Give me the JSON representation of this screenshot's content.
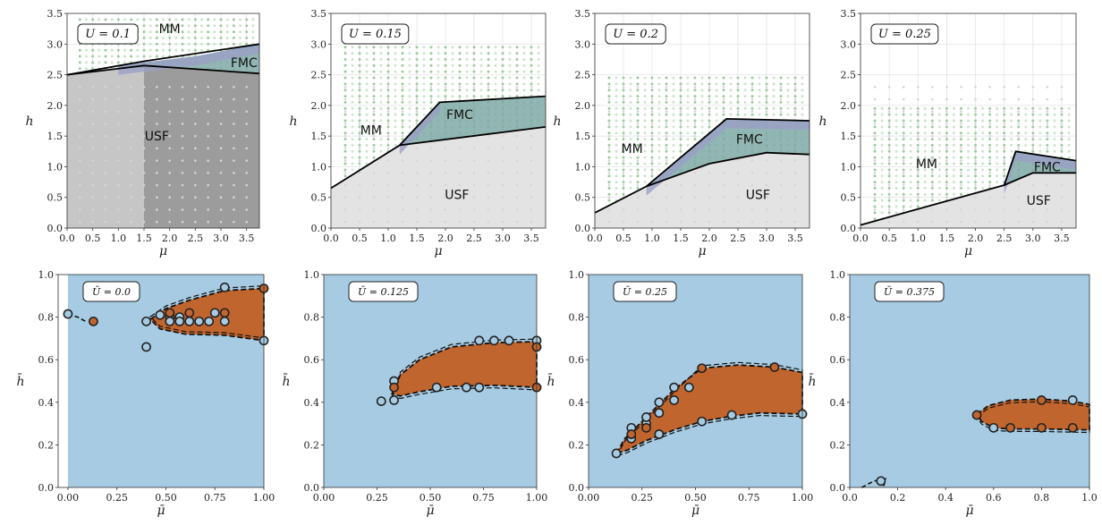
{
  "chart_data": [
    {
      "type": "area",
      "panel": "top",
      "annotation": "U = 0.1",
      "xlabel": "μ",
      "ylabel": "h",
      "xlim": [
        0,
        3.75
      ],
      "ylim": [
        0,
        3.5
      ],
      "xticks": [
        "0.0",
        "0.5",
        "1.0",
        "1.5",
        "2.0",
        "2.5",
        "3.0",
        "3.5"
      ],
      "yticks": [
        "0.0",
        "0.5",
        "1.0",
        "1.5",
        "2.0",
        "2.5",
        "3.0",
        "3.5"
      ],
      "grid": true,
      "region_labels": [
        {
          "text": "MM",
          "x": 2.0,
          "y": 3.25
        },
        {
          "text": "FMC",
          "x": 3.45,
          "y": 2.7
        },
        {
          "text": "USF",
          "x": 1.75,
          "y": 1.5
        }
      ],
      "boundaries": [
        [
          [
            0,
            2.5
          ],
          [
            1.5,
            2.72
          ],
          [
            3.75,
            3.0
          ]
        ],
        [
          [
            0,
            2.5
          ],
          [
            1.5,
            2.65
          ],
          [
            3.75,
            2.52
          ]
        ]
      ],
      "fill_top": [
        [
          0,
          2.5
        ],
        [
          1.5,
          2.65
        ],
        [
          3.75,
          2.52
        ]
      ],
      "fmc_region": [
        [
          1.0,
          2.65
        ],
        [
          2.5,
          2.8
        ],
        [
          3.75,
          3.0
        ],
        [
          3.75,
          2.52
        ],
        [
          2.5,
          2.6
        ],
        [
          1.0,
          2.62
        ]
      ],
      "dots_ymin": 2.5
    },
    {
      "type": "area",
      "panel": "top",
      "annotation": "U = 0.15",
      "xlabel": "μ",
      "ylabel": "h",
      "xlim": [
        0,
        3.75
      ],
      "ylim": [
        0,
        3.5
      ],
      "xticks": [
        "0.0",
        "0.5",
        "1.0",
        "1.5",
        "2.0",
        "2.5",
        "3.0",
        "3.5"
      ],
      "yticks": [
        "0.0",
        "0.5",
        "1.0",
        "1.5",
        "2.0",
        "2.5",
        "3.0",
        "3.5"
      ],
      "grid": true,
      "region_labels": [
        {
          "text": "MM",
          "x": 0.7,
          "y": 1.6
        },
        {
          "text": "FMC",
          "x": 2.25,
          "y": 1.85
        },
        {
          "text": "USF",
          "x": 2.2,
          "y": 0.55
        }
      ],
      "boundaries": [
        [
          [
            0,
            0.65
          ],
          [
            1.2,
            1.35
          ],
          [
            1.9,
            2.05
          ],
          [
            3.75,
            2.15
          ]
        ],
        [
          [
            1.2,
            1.35
          ],
          [
            3.75,
            1.65
          ]
        ]
      ],
      "fill_top": [
        [
          0,
          0.65
        ],
        [
          1.2,
          1.35
        ],
        [
          3.75,
          1.65
        ]
      ],
      "fmc_region": [
        [
          1.2,
          1.35
        ],
        [
          1.9,
          2.05
        ],
        [
          3.75,
          2.15
        ],
        [
          3.75,
          1.65
        ]
      ],
      "dots_ymin": 0.65,
      "dots_ymax": 3.0
    },
    {
      "type": "area",
      "panel": "top",
      "annotation": "U = 0.2",
      "xlabel": "μ",
      "ylabel": "h",
      "xlim": [
        0,
        3.75
      ],
      "ylim": [
        0,
        3.5
      ],
      "xticks": [
        "0.0",
        "0.5",
        "1.0",
        "1.5",
        "2.0",
        "2.5",
        "3.0",
        "3.5"
      ],
      "yticks": [
        "0.0",
        "0.5",
        "1.0",
        "1.5",
        "2.0",
        "2.5",
        "3.0",
        "3.5"
      ],
      "grid": true,
      "region_labels": [
        {
          "text": "MM",
          "x": 0.65,
          "y": 1.3
        },
        {
          "text": "FMC",
          "x": 2.7,
          "y": 1.45
        },
        {
          "text": "USF",
          "x": 2.85,
          "y": 0.55
        }
      ],
      "boundaries": [
        [
          [
            0,
            0.25
          ],
          [
            0.9,
            0.68
          ],
          [
            2.3,
            1.78
          ],
          [
            3.75,
            1.75
          ]
        ],
        [
          [
            0.9,
            0.68
          ],
          [
            2.0,
            1.05
          ],
          [
            3.0,
            1.23
          ],
          [
            3.75,
            1.2
          ]
        ]
      ],
      "fill_top": [
        [
          0,
          0.25
        ],
        [
          0.9,
          0.68
        ],
        [
          2.0,
          1.05
        ],
        [
          3.0,
          1.23
        ],
        [
          3.75,
          1.2
        ]
      ],
      "fmc_region": [
        [
          0.9,
          0.68
        ],
        [
          2.3,
          1.78
        ],
        [
          3.75,
          1.75
        ],
        [
          3.75,
          1.2
        ],
        [
          3.0,
          1.23
        ],
        [
          2.0,
          1.05
        ]
      ],
      "dots_ymin": 0.25,
      "dots_ymax": 2.5
    },
    {
      "type": "area",
      "panel": "top",
      "annotation": "U = 0.25",
      "xlabel": "μ",
      "ylabel": "h",
      "xlim": [
        0,
        3.75
      ],
      "ylim": [
        0,
        3.5
      ],
      "xticks": [
        "0.0",
        "0.5",
        "1.0",
        "1.5",
        "2.0",
        "2.5",
        "3.0",
        "3.5"
      ],
      "yticks": [
        "0.0",
        "0.5",
        "1.0",
        "1.5",
        "2.0",
        "2.5",
        "3.0",
        "3.5"
      ],
      "grid": true,
      "region_labels": [
        {
          "text": "MM",
          "x": 1.15,
          "y": 1.05
        },
        {
          "text": "FMC",
          "x": 3.25,
          "y": 1.0
        },
        {
          "text": "USF",
          "x": 3.1,
          "y": 0.45
        }
      ],
      "boundaries": [
        [
          [
            0,
            0.05
          ],
          [
            2.5,
            0.7
          ],
          [
            2.7,
            1.25
          ],
          [
            3.75,
            1.1
          ]
        ],
        [
          [
            2.5,
            0.7
          ],
          [
            3.0,
            0.9
          ],
          [
            3.75,
            0.9
          ]
        ]
      ],
      "fill_top": [
        [
          0,
          0.05
        ],
        [
          2.5,
          0.7
        ],
        [
          3.0,
          0.9
        ],
        [
          3.75,
          0.9
        ]
      ],
      "fmc_region": [
        [
          2.5,
          0.7
        ],
        [
          2.7,
          1.25
        ],
        [
          3.75,
          1.1
        ],
        [
          3.75,
          0.9
        ],
        [
          3.0,
          0.9
        ]
      ],
      "dots_ymin": 0.05,
      "dots_ymax": 2.0
    },
    {
      "type": "area",
      "panel": "bottom",
      "annotation": "Ū = 0.0",
      "xlabel": "μ̄",
      "ylabel": "h̄",
      "xlim": [
        -0.05,
        1.0
      ],
      "ylim": [
        0,
        1.0
      ],
      "xticks": [
        "0.00",
        "0.25",
        "0.50",
        "0.75",
        "1.00"
      ],
      "xtick_values": [
        0,
        0.25,
        0.5,
        0.75,
        1.0
      ],
      "yticks": [
        "0.0",
        "0.2",
        "0.4",
        "0.6",
        "0.8",
        "1.0"
      ],
      "grid": false,
      "region": [
        [
          0.42,
          0.79
        ],
        [
          0.5,
          0.84
        ],
        [
          0.62,
          0.88
        ],
        [
          0.8,
          0.925
        ],
        [
          1.0,
          0.935
        ],
        [
          1.0,
          0.69
        ],
        [
          0.8,
          0.715
        ],
        [
          0.6,
          0.72
        ],
        [
          0.47,
          0.745
        ],
        [
          0.42,
          0.79
        ]
      ],
      "points_light": [
        [
          0.4,
          0.78
        ],
        [
          0.4,
          0.66
        ],
        [
          0.47,
          0.81
        ],
        [
          0.52,
          0.8
        ],
        [
          0.52,
          0.78
        ],
        [
          0.57,
          0.8
        ],
        [
          0.57,
          0.78
        ],
        [
          0.62,
          0.78
        ],
        [
          0.67,
          0.78
        ],
        [
          0.72,
          0.78
        ],
        [
          0.75,
          0.82
        ],
        [
          0.8,
          0.78
        ],
        [
          0.8,
          0.94
        ],
        [
          0.0,
          0.815
        ],
        [
          1.0,
          0.69
        ]
      ],
      "points_orange": [
        [
          0.13,
          0.78
        ],
        [
          0.52,
          0.82
        ],
        [
          0.62,
          0.82
        ],
        [
          0.8,
          0.82
        ],
        [
          1.0,
          0.935
        ]
      ]
    },
    {
      "type": "area",
      "panel": "bottom",
      "annotation": "Ū = 0.125",
      "xlabel": "μ̄",
      "ylabel": "h̄",
      "xlim": [
        0,
        1.0
      ],
      "ylim": [
        0,
        1.0
      ],
      "xticks": [
        "0.00",
        "0.25",
        "0.50",
        "0.75",
        "1.00"
      ],
      "xtick_values": [
        0,
        0.25,
        0.5,
        0.75,
        1.0
      ],
      "yticks": [
        "0.0",
        "0.2",
        "0.4",
        "0.6",
        "0.8",
        "1.0"
      ],
      "grid": false,
      "region": [
        [
          0.32,
          0.44
        ],
        [
          0.36,
          0.53
        ],
        [
          0.45,
          0.6
        ],
        [
          0.6,
          0.66
        ],
        [
          0.8,
          0.68
        ],
        [
          1.0,
          0.685
        ],
        [
          1.0,
          0.47
        ],
        [
          0.8,
          0.48
        ],
        [
          0.6,
          0.475
        ],
        [
          0.45,
          0.45
        ],
        [
          0.36,
          0.43
        ],
        [
          0.32,
          0.44
        ]
      ],
      "points_light": [
        [
          0.27,
          0.405
        ],
        [
          0.33,
          0.41
        ],
        [
          0.33,
          0.5
        ],
        [
          0.53,
          0.47
        ],
        [
          0.67,
          0.47
        ],
        [
          0.73,
          0.47
        ],
        [
          0.73,
          0.69
        ],
        [
          0.8,
          0.69
        ],
        [
          0.87,
          0.69
        ],
        [
          1.0,
          0.69
        ]
      ],
      "points_orange": [
        [
          0.33,
          0.47
        ],
        [
          1.0,
          0.66
        ],
        [
          1.0,
          0.47
        ]
      ]
    },
    {
      "type": "area",
      "panel": "bottom",
      "annotation": "Ū = 0.25",
      "xlabel": "μ̄",
      "ylabel": "h̄",
      "xlim": [
        0,
        1.0
      ],
      "ylim": [
        0,
        1.0
      ],
      "xticks": [
        "0.00",
        "0.25",
        "0.50",
        "0.75",
        "1.00"
      ],
      "xtick_values": [
        0,
        0.25,
        0.5,
        0.75,
        1.0
      ],
      "yticks": [
        "0.0",
        "0.2",
        "0.4",
        "0.6",
        "0.8",
        "1.0"
      ],
      "grid": false,
      "region": [
        [
          0.13,
          0.16
        ],
        [
          0.17,
          0.23
        ],
        [
          0.27,
          0.33
        ],
        [
          0.4,
          0.46
        ],
        [
          0.53,
          0.56
        ],
        [
          0.7,
          0.575
        ],
        [
          0.87,
          0.565
        ],
        [
          1.0,
          0.54
        ],
        [
          1.0,
          0.345
        ],
        [
          0.8,
          0.35
        ],
        [
          0.67,
          0.335
        ],
        [
          0.53,
          0.31
        ],
        [
          0.4,
          0.27
        ],
        [
          0.27,
          0.22
        ],
        [
          0.18,
          0.175
        ],
        [
          0.13,
          0.16
        ]
      ],
      "points_light": [
        [
          0.13,
          0.16
        ],
        [
          0.2,
          0.23
        ],
        [
          0.2,
          0.28
        ],
        [
          0.27,
          0.3
        ],
        [
          0.27,
          0.33
        ],
        [
          0.33,
          0.25
        ],
        [
          0.33,
          0.35
        ],
        [
          0.4,
          0.41
        ],
        [
          0.4,
          0.47
        ],
        [
          0.47,
          0.47
        ],
        [
          0.53,
          0.31
        ],
        [
          0.67,
          0.34
        ],
        [
          1.0,
          0.345
        ],
        [
          0.33,
          0.4
        ]
      ],
      "points_orange": [
        [
          0.53,
          0.56
        ],
        [
          0.87,
          0.565
        ],
        [
          0.2,
          0.25
        ],
        [
          0.27,
          0.28
        ]
      ]
    },
    {
      "type": "area",
      "panel": "bottom",
      "annotation": "Ū = 0.375",
      "xlabel": "μ̄",
      "ylabel": "h̄",
      "xlim": [
        0,
        1.0
      ],
      "ylim": [
        0,
        1.0
      ],
      "xticks": [
        "0.0",
        "0.2",
        "0.4",
        "0.6",
        "0.8",
        "1.0"
      ],
      "xtick_values": [
        0,
        0.2,
        0.4,
        0.6,
        0.8,
        1.0
      ],
      "yticks": [
        "0.0",
        "0.2",
        "0.4",
        "0.6",
        "0.8",
        "1.0"
      ],
      "grid": false,
      "region": [
        [
          0.53,
          0.345
        ],
        [
          0.58,
          0.385
        ],
        [
          0.67,
          0.41
        ],
        [
          0.8,
          0.415
        ],
        [
          0.93,
          0.405
        ],
        [
          1.0,
          0.39
        ],
        [
          1.0,
          0.27
        ],
        [
          0.8,
          0.275
        ],
        [
          0.67,
          0.275
        ],
        [
          0.6,
          0.28
        ],
        [
          0.55,
          0.31
        ],
        [
          0.53,
          0.345
        ]
      ],
      "points_light": [
        [
          0.6,
          0.28
        ],
        [
          0.93,
          0.41
        ],
        [
          0.13,
          0.03
        ]
      ],
      "points_orange": [
        [
          0.53,
          0.34
        ],
        [
          0.67,
          0.28
        ],
        [
          0.8,
          0.28
        ],
        [
          0.8,
          0.41
        ],
        [
          0.93,
          0.28
        ]
      ]
    }
  ],
  "colors": {
    "usf_gray": "#b8b8b8",
    "mm_green": "#8fc48f",
    "fmc_teal": "#7fa9a6",
    "fmc_lilac": "#9aa0c6",
    "bottom_bg": "#a6cbe3",
    "bottom_region": "#c1652e",
    "point_light": "#a6cbe3",
    "point_orange": "#c1652e"
  }
}
